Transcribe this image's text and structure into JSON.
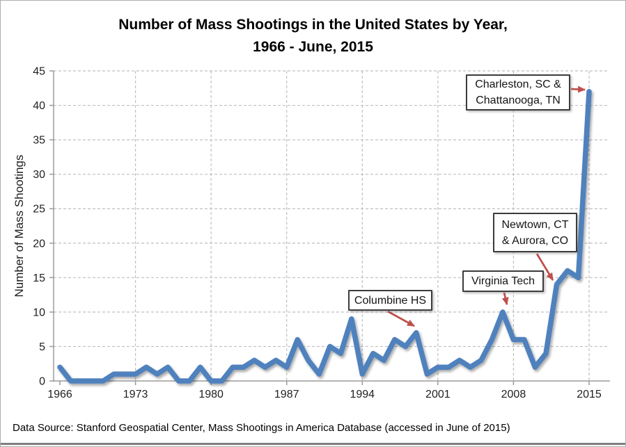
{
  "title": {
    "line1": "Number of Mass Shootings in the United States by Year,",
    "line2": "1966 - June, 2015"
  },
  "footer": {
    "text": "Data Source: Stanford Geospatial Center, Mass Shootings in America Database (accessed in June of 2015)"
  },
  "chart_data": {
    "type": "line",
    "title": "Number of Mass Shootings in the United States by Year, 1966 - June, 2015",
    "xlabel": "",
    "ylabel": "Number of Mass Shootings",
    "x": [
      1966,
      1967,
      1968,
      1969,
      1970,
      1971,
      1972,
      1973,
      1974,
      1975,
      1976,
      1977,
      1978,
      1979,
      1980,
      1981,
      1982,
      1983,
      1984,
      1985,
      1986,
      1987,
      1988,
      1989,
      1990,
      1991,
      1992,
      1993,
      1994,
      1995,
      1996,
      1997,
      1998,
      1999,
      2000,
      2001,
      2002,
      2003,
      2004,
      2005,
      2006,
      2007,
      2008,
      2009,
      2010,
      2011,
      2012,
      2013,
      2014,
      2015
    ],
    "values": [
      2,
      0,
      0,
      0,
      0,
      1,
      1,
      1,
      2,
      1,
      2,
      0,
      0,
      2,
      0,
      0,
      2,
      2,
      3,
      2,
      3,
      2,
      6,
      3,
      1,
      5,
      4,
      9,
      1,
      4,
      3,
      6,
      5,
      7,
      1,
      2,
      2,
      3,
      2,
      3,
      6,
      10,
      6,
      6,
      2,
      4,
      14,
      16,
      15,
      42
    ],
    "ylim": [
      0,
      45
    ],
    "xlim": [
      1966,
      2015
    ],
    "x_tick_labels": [
      "1966",
      "1973",
      "1980",
      "1987",
      "1994",
      "2001",
      "2008",
      "2015"
    ],
    "y_tick_labels": [
      "0",
      "5",
      "10",
      "15",
      "20",
      "25",
      "30",
      "35",
      "40",
      "45"
    ],
    "grid": "dashed",
    "legend": "none",
    "line_color": "#4F81BD",
    "annotation_arrow_color": "#C0504D",
    "gridline_color": "#BFBFBF",
    "axis_color": "#9B9B9B",
    "annotations": [
      {
        "id": "charleston",
        "lines": [
          "Charleston, SC &",
          "Chattanooga, TN"
        ],
        "points_to_year": 2015
      },
      {
        "id": "newtown",
        "lines": [
          "Newtown, CT",
          "& Aurora, CO"
        ],
        "points_to_year": 2012
      },
      {
        "id": "vtech",
        "lines": [
          "Virginia Tech"
        ],
        "points_to_year": 2007
      },
      {
        "id": "columbine",
        "lines": [
          "Columbine HS"
        ],
        "points_to_year": 1999
      }
    ]
  }
}
